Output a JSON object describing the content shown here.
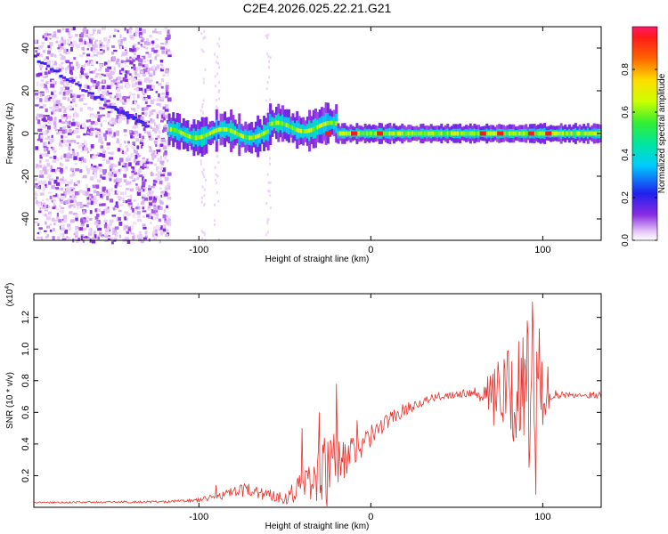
{
  "title": "C2E4.2026.025.22.21.G21",
  "chart_data": [
    {
      "type": "heatmap",
      "xlabel": "Height of straight line (km)",
      "ylabel": "Frequency (Hz)",
      "xlim": [
        -196,
        134
      ],
      "ylim": [
        -50,
        50
      ],
      "xticks": [
        -100,
        0,
        100
      ],
      "xtick_labels": [
        "-100",
        "0",
        "100"
      ],
      "yticks": [
        -40,
        -20,
        0,
        20,
        40
      ],
      "ytick_labels": [
        "-40",
        "-20",
        "0",
        "20",
        "40"
      ],
      "colorbar": {
        "label": "Normalized spectral amplitude",
        "range": [
          0,
          1
        ],
        "ticks": [
          0.0,
          0.2,
          0.4,
          0.6,
          0.8
        ],
        "tick_labels": [
          "0.0",
          "0.2",
          "0.4",
          "0.6",
          "0.8"
        ]
      },
      "features": {
        "scatter_region_x": [
          -196,
          -118
        ],
        "diagonal_line": [
          [
            -196,
            36
          ],
          [
            -150,
            12
          ],
          [
            -130,
            4
          ]
        ],
        "band_center_hz": 0,
        "band_start_x": -118,
        "peak_x": [
          -25,
          -10,
          5,
          65,
          75,
          93,
          103
        ]
      }
    },
    {
      "type": "line",
      "xlabel": "Height of straight line (km)",
      "ylabel": "SNR (10 * v/v)",
      "scale_label": "(x10",
      "scale_exp": "4",
      "xlim": [
        -196,
        134
      ],
      "ylim": [
        0,
        1.35
      ],
      "xticks": [
        -100,
        0,
        100
      ],
      "xtick_labels": [
        "-100",
        "0",
        "100"
      ],
      "yticks": [
        0.2,
        0.4,
        0.6,
        0.8,
        1.0,
        1.2
      ],
      "ytick_labels": [
        "0.2",
        "0.4",
        "0.6",
        "0.8",
        "1.0",
        "1.2"
      ],
      "color": "#e8302a",
      "envelope_x": [
        -196,
        -120,
        -100,
        -90,
        -80,
        -70,
        -60,
        -50,
        -45,
        -40,
        -30,
        -20,
        -10,
        0,
        10,
        20,
        30,
        40,
        50,
        60,
        67,
        70,
        80,
        85,
        88,
        91,
        94,
        97,
        100,
        104,
        110,
        120,
        134
      ],
      "envelope_y": [
        0.03,
        0.035,
        0.045,
        0.07,
        0.09,
        0.11,
        0.08,
        0.06,
        0.1,
        0.14,
        0.2,
        0.26,
        0.35,
        0.45,
        0.55,
        0.62,
        0.67,
        0.7,
        0.72,
        0.73,
        0.72,
        0.7,
        0.7,
        0.7,
        0.7,
        0.69,
        0.7,
        0.7,
        0.7,
        0.7,
        0.71,
        0.71,
        0.71
      ],
      "noise_x": [
        -196,
        -120,
        -100,
        -80,
        -70,
        -60,
        -50,
        -40,
        -30,
        -25,
        -20,
        -10,
        0,
        10,
        30,
        40,
        60,
        67,
        70,
        80,
        85,
        88,
        91,
        94,
        97,
        100,
        104,
        110,
        134
      ],
      "noise_y": [
        0.005,
        0.007,
        0.012,
        0.04,
        0.05,
        0.04,
        0.04,
        0.1,
        0.18,
        0.28,
        0.2,
        0.12,
        0.07,
        0.05,
        0.03,
        0.025,
        0.03,
        0.08,
        0.2,
        0.3,
        0.33,
        0.38,
        0.45,
        0.45,
        0.35,
        0.2,
        0.06,
        0.02,
        0.02
      ],
      "spikes": [
        [
          -90,
          0.14
        ],
        [
          -40,
          0.5
        ],
        [
          -30,
          0.6
        ],
        [
          -20,
          0.78
        ],
        [
          -8,
          0.55
        ],
        [
          -5,
          0.42
        ],
        [
          74,
          0.92
        ],
        [
          86,
          1.05
        ],
        [
          91,
          1.18
        ],
        [
          94,
          1.3
        ],
        [
          96,
          0.08
        ],
        [
          98,
          1.13
        ],
        [
          100,
          0.52
        ],
        [
          103,
          0.89
        ]
      ]
    }
  ]
}
